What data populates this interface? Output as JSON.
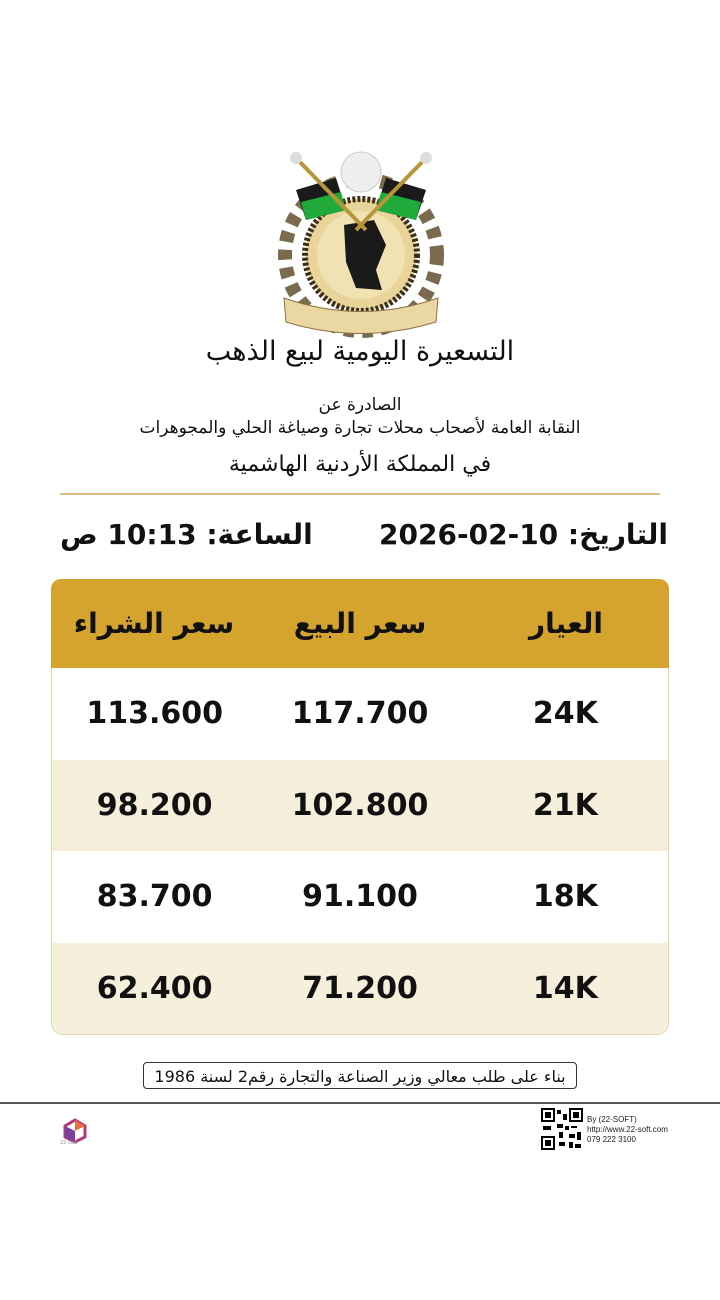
{
  "header": {
    "logo_text": "النقابة العامة لأصحاب محلات تجارة وصياغة الحلي والمجوهرات - تأسست 1972",
    "title": "التسعيرة اليومية لبيع الذهب",
    "issued_by_label": "الصادرة عن",
    "issuer": "النقابة العامة لأصحاب محلات تجارة وصياغة الحلي والمجوهرات",
    "country": "في المملكة الأردنية الهاشمية"
  },
  "dateline": {
    "date_label": "التاريخ:",
    "date": "10-02-2026",
    "time_label": "الساعة:",
    "time": "10:13 ص"
  },
  "table": {
    "columns": [
      "العيار",
      "سعر البيع",
      "سعر الشراء"
    ],
    "rows": [
      {
        "karat": "24K",
        "sell": "117.700",
        "buy": "113.600"
      },
      {
        "karat": "21K",
        "sell": "102.800",
        "buy": "98.200"
      },
      {
        "karat": "18K",
        "sell": "91.100",
        "buy": "83.700"
      },
      {
        "karat": "14K",
        "sell": "71.200",
        "buy": "62.400"
      }
    ]
  },
  "colors": {
    "header_gold": "#d4a42e",
    "alt_row": "#f6efdb",
    "divider": "#d9be84"
  },
  "footer": {
    "note": "بناء على طلب معالي وزير الصناعة والتجارة رقم2 لسنة 1986",
    "credit_by": "By (22-SOFT)",
    "credit_url": "http://www.22-soft.com",
    "credit_phone": "079 222 3100",
    "brand_text": "22-soft"
  }
}
